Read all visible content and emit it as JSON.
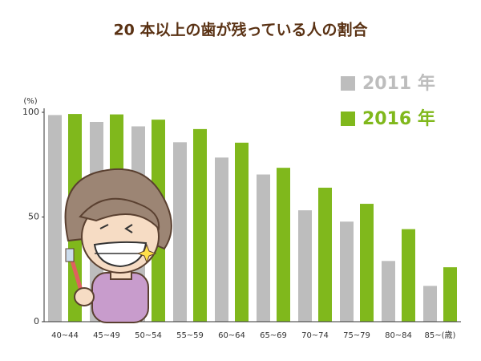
{
  "chart_data": {
    "type": "bar",
    "title": "20 本以上の歯が残っている人の割合",
    "y_unit": "(%)",
    "categories": [
      "40~44",
      "45~49",
      "50~54",
      "55~59",
      "60~64",
      "65~69",
      "70~74",
      "75~79",
      "80~84",
      "85~(歳)"
    ],
    "series": [
      {
        "name": "2011 年",
        "color": "#bdbdbd",
        "values": [
          98.7,
          95.4,
          93.3,
          85.7,
          78.4,
          70.3,
          53.2,
          47.8,
          29.0,
          17.1
        ]
      },
      {
        "name": "2016 年",
        "color": "#80b81c",
        "values": [
          99.2,
          99.0,
          96.5,
          92.0,
          85.5,
          73.5,
          64.0,
          56.3,
          44.2,
          26.0
        ]
      }
    ],
    "ylim": [
      0,
      100
    ],
    "yticks": [
      0,
      50,
      100
    ],
    "grid": false
  }
}
